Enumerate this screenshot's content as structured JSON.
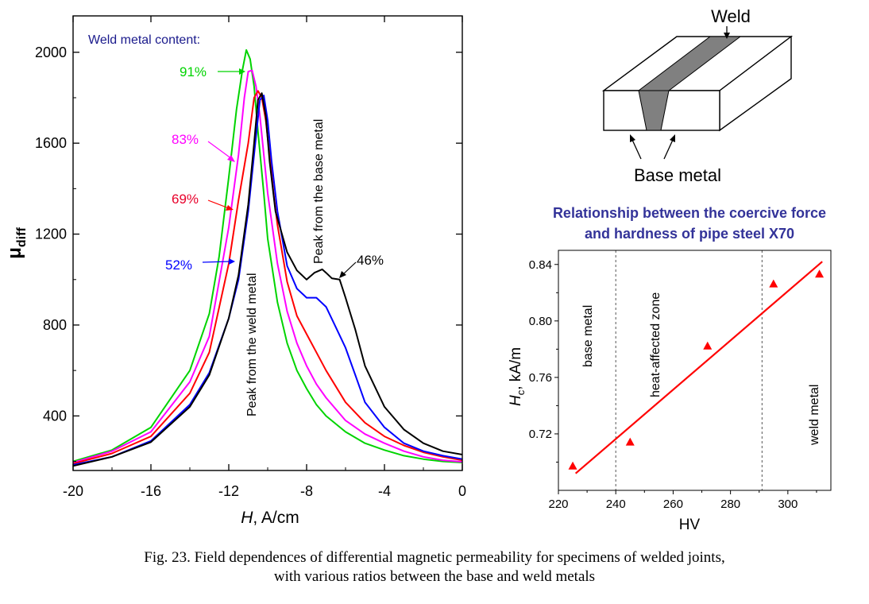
{
  "chart_data": [
    {
      "type": "line",
      "title": "",
      "xlabel_italic": "H",
      "xlabel_rest": ", A/cm",
      "ylabel_main": "μ",
      "ylabel_sub": "diff",
      "xlim": [
        -20,
        0
      ],
      "ylim": [
        160,
        2160
      ],
      "xticks": [
        -20,
        -16,
        -12,
        -8,
        -4,
        0
      ],
      "yticks": [
        400,
        800,
        1200,
        1600,
        2000
      ],
      "legend_title": "Weld metal content:",
      "annotations": [
        "Peak from the weld metal",
        "Peak from the base metal"
      ],
      "colors": {
        "91%": "#00d400",
        "83%": "#ff00ff",
        "69%": "#ff0000",
        "52%": "#0000ff",
        "46%": "#000000",
        "legend_title": "#1a1a8c"
      },
      "series": [
        {
          "name": "91%",
          "x": [
            -20,
            -18,
            -16,
            -14,
            -13,
            -12.5,
            -12,
            -11.6,
            -11.3,
            -11.1,
            -10.9,
            -10.7,
            -10.5,
            -10.2,
            -10,
            -9.5,
            -9,
            -8.5,
            -8,
            -7.5,
            -7,
            -6,
            -5,
            -4,
            -3,
            -2,
            -1,
            0
          ],
          "y": [
            200,
            250,
            350,
            600,
            850,
            1100,
            1450,
            1750,
            1920,
            2010,
            1970,
            1850,
            1650,
            1380,
            1180,
            900,
            720,
            600,
            520,
            450,
            400,
            330,
            280,
            250,
            225,
            210,
            200,
            195
          ]
        },
        {
          "name": "83%",
          "x": [
            -20,
            -18,
            -16,
            -14,
            -13,
            -12,
            -11.5,
            -11.2,
            -11,
            -10.8,
            -10.6,
            -10.4,
            -10.2,
            -10,
            -9.5,
            -9,
            -8.5,
            -8,
            -7.5,
            -7,
            -6,
            -5,
            -4,
            -3,
            -2,
            -1,
            0
          ],
          "y": [
            195,
            245,
            330,
            550,
            750,
            1230,
            1550,
            1800,
            1915,
            1920,
            1850,
            1720,
            1550,
            1380,
            1070,
            860,
            720,
            620,
            540,
            480,
            380,
            320,
            280,
            245,
            220,
            205,
            198
          ]
        },
        {
          "name": "69%",
          "x": [
            -20,
            -18,
            -16,
            -14,
            -13,
            -12,
            -11.5,
            -11,
            -10.7,
            -10.5,
            -10.3,
            -10.1,
            -9.9,
            -9.7,
            -9.5,
            -9,
            -8.5,
            -8,
            -7.5,
            -7,
            -6,
            -5,
            -4,
            -3,
            -2,
            -1,
            0
          ],
          "y": [
            190,
            235,
            310,
            500,
            680,
            1070,
            1350,
            1600,
            1800,
            1830,
            1800,
            1700,
            1550,
            1380,
            1240,
            990,
            840,
            760,
            680,
            600,
            460,
            370,
            310,
            270,
            240,
            220,
            205
          ]
        },
        {
          "name": "52%",
          "x": [
            -20,
            -18,
            -16,
            -14,
            -13,
            -12,
            -11.5,
            -11,
            -10.7,
            -10.4,
            -10.2,
            -10,
            -9.8,
            -9.5,
            -9,
            -8.5,
            -8,
            -7.5,
            -7,
            -6.5,
            -6,
            -5.5,
            -5,
            -4,
            -3,
            -2,
            -1,
            0
          ],
          "y": [
            185,
            220,
            290,
            450,
            590,
            830,
            1000,
            1300,
            1550,
            1790,
            1810,
            1700,
            1520,
            1300,
            1060,
            960,
            920,
            920,
            880,
            790,
            700,
            580,
            460,
            350,
            280,
            245,
            225,
            210
          ]
        },
        {
          "name": "46%",
          "x": [
            -20,
            -18,
            -16,
            -14,
            -13,
            -12,
            -11.5,
            -11,
            -10.7,
            -10.5,
            -10.3,
            -10.1,
            -9.9,
            -9.6,
            -9,
            -8.5,
            -8,
            -7.6,
            -7.2,
            -7,
            -6.7,
            -6.3,
            -6,
            -5.5,
            -5,
            -4,
            -3,
            -2,
            -1,
            0
          ],
          "y": [
            180,
            220,
            285,
            440,
            580,
            830,
            1020,
            1330,
            1600,
            1790,
            1820,
            1720,
            1520,
            1300,
            1120,
            1040,
            1000,
            1030,
            1045,
            1030,
            1005,
            1000,
            920,
            780,
            620,
            440,
            340,
            280,
            245,
            230
          ]
        }
      ]
    },
    {
      "type": "diagram",
      "labels": {
        "top": "Weld",
        "bottom": "Base metal"
      }
    },
    {
      "type": "scatter",
      "title_line1": "Relationship  between the coercive force",
      "title_line2": "and hardness of pipe steel X70",
      "xlabel": "HV",
      "ylabel_italic": "H",
      "ylabel_sub": "c",
      "ylabel_rest": ", kA/m",
      "xlim": [
        220,
        315
      ],
      "ylim": [
        0.68,
        0.85
      ],
      "xticks": [
        220,
        240,
        260,
        280,
        300
      ],
      "yticks": [
        "0.72",
        "0.76",
        "0.80",
        "0.84"
      ],
      "zone_boundaries": [
        240,
        291
      ],
      "zones": [
        "base metal",
        "heat-affected zone",
        "weld metal"
      ],
      "points": {
        "x": [
          225,
          245,
          272,
          295,
          311
        ],
        "y": [
          0.697,
          0.714,
          0.782,
          0.826,
          0.833
        ]
      },
      "fit_line": {
        "x": [
          226,
          312
        ],
        "y": [
          0.692,
          0.842
        ]
      },
      "colors": {
        "points": "#ff0000",
        "line": "#ff0000",
        "title": "#333399"
      }
    }
  ],
  "caption": {
    "line1": "Fig. 23. Field dependences of differential magnetic permeability for specimens of welded joints,",
    "line2": "with various ratios between the base and weld metals"
  }
}
